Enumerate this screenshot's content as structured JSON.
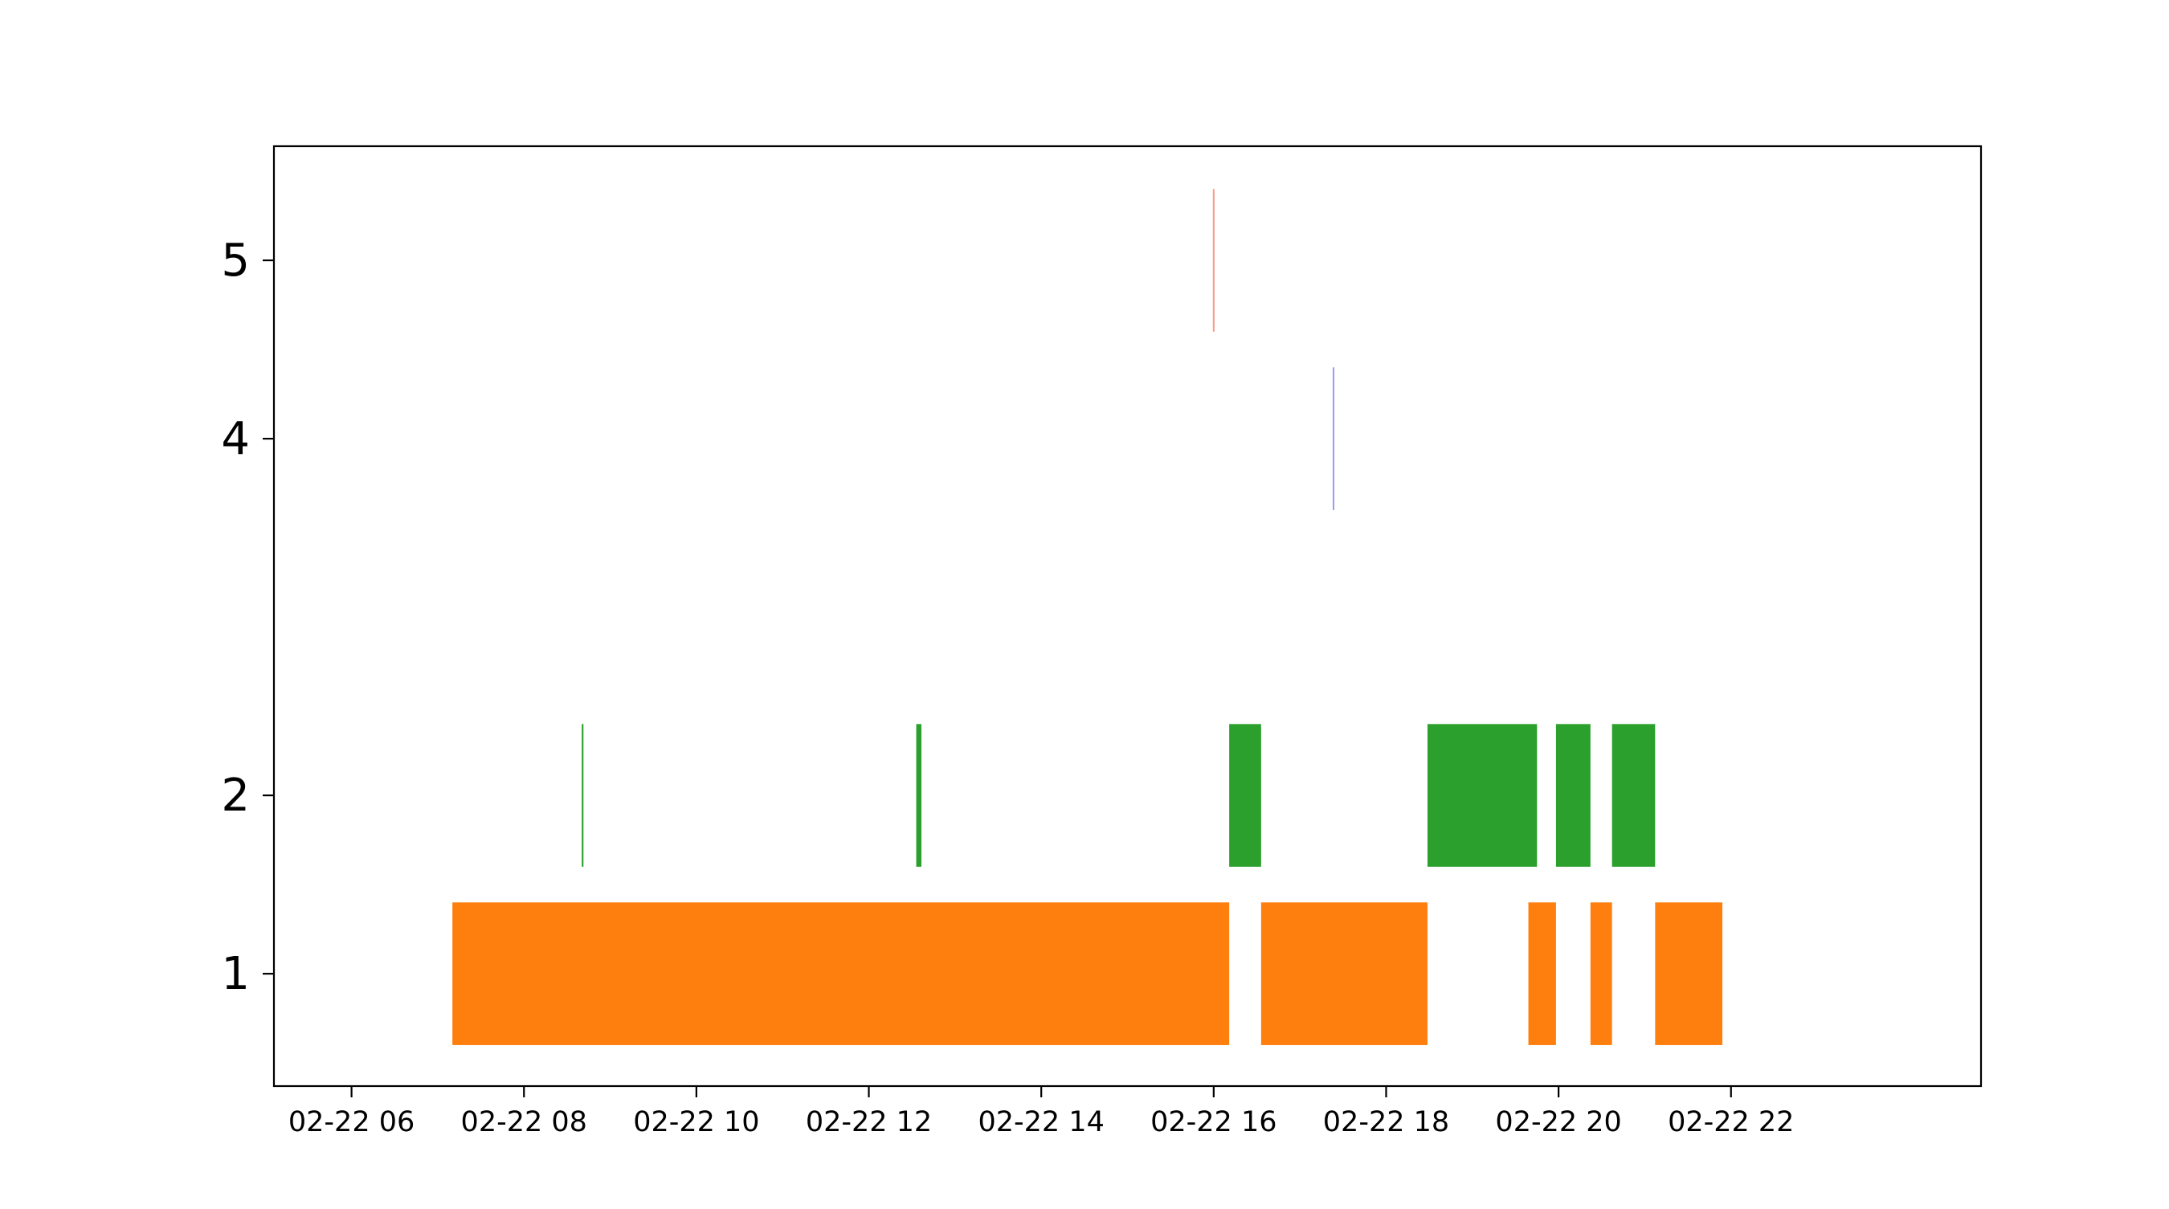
{
  "chart_data": {
    "type": "bar",
    "orientation": "horizontal",
    "title": "",
    "xlabel": "",
    "ylabel": "",
    "x_axis": {
      "kind": "datetime-hours",
      "date": "02-22",
      "tick_hours": [
        6,
        8,
        10,
        12,
        14,
        16,
        18,
        20,
        22
      ],
      "tick_labels": [
        "02-22 06",
        "02-22 08",
        "02-22 10",
        "02-22 12",
        "02-22 14",
        "02-22 16",
        "02-22 18",
        "02-22 20",
        "02-22 22"
      ],
      "xlim_hours": [
        5.1,
        24.9
      ]
    },
    "y_axis": {
      "ticks": [
        1,
        2,
        4,
        5
      ],
      "tick_labels": [
        "1",
        "2",
        "4",
        "5"
      ],
      "ylim": [
        0.37,
        5.64
      ]
    },
    "grid": false,
    "legend": "none",
    "series": [
      {
        "y": 1,
        "color": "#ff7f0e",
        "segments": [
          {
            "start": 7.17,
            "end": 16.18
          },
          {
            "start": 16.55,
            "end": 18.48
          },
          {
            "start": 19.65,
            "end": 19.97
          },
          {
            "start": 20.37,
            "end": 20.62
          },
          {
            "start": 21.12,
            "end": 21.9
          }
        ]
      },
      {
        "y": 2,
        "color": "#2ca02c",
        "segments": [
          {
            "start": 8.67,
            "end": 8.69
          },
          {
            "start": 12.55,
            "end": 12.61
          },
          {
            "start": 16.18,
            "end": 16.55
          },
          {
            "start": 18.48,
            "end": 19.75
          },
          {
            "start": 19.97,
            "end": 20.37
          },
          {
            "start": 20.62,
            "end": 21.12
          }
        ]
      },
      {
        "y": 4,
        "color": "#9f9ff0",
        "segments": [
          {
            "start": 17.38,
            "end": 17.4
          }
        ]
      },
      {
        "y": 5,
        "color": "#f2a18c",
        "segments": [
          {
            "start": 15.99,
            "end": 16.01
          }
        ]
      }
    ]
  }
}
